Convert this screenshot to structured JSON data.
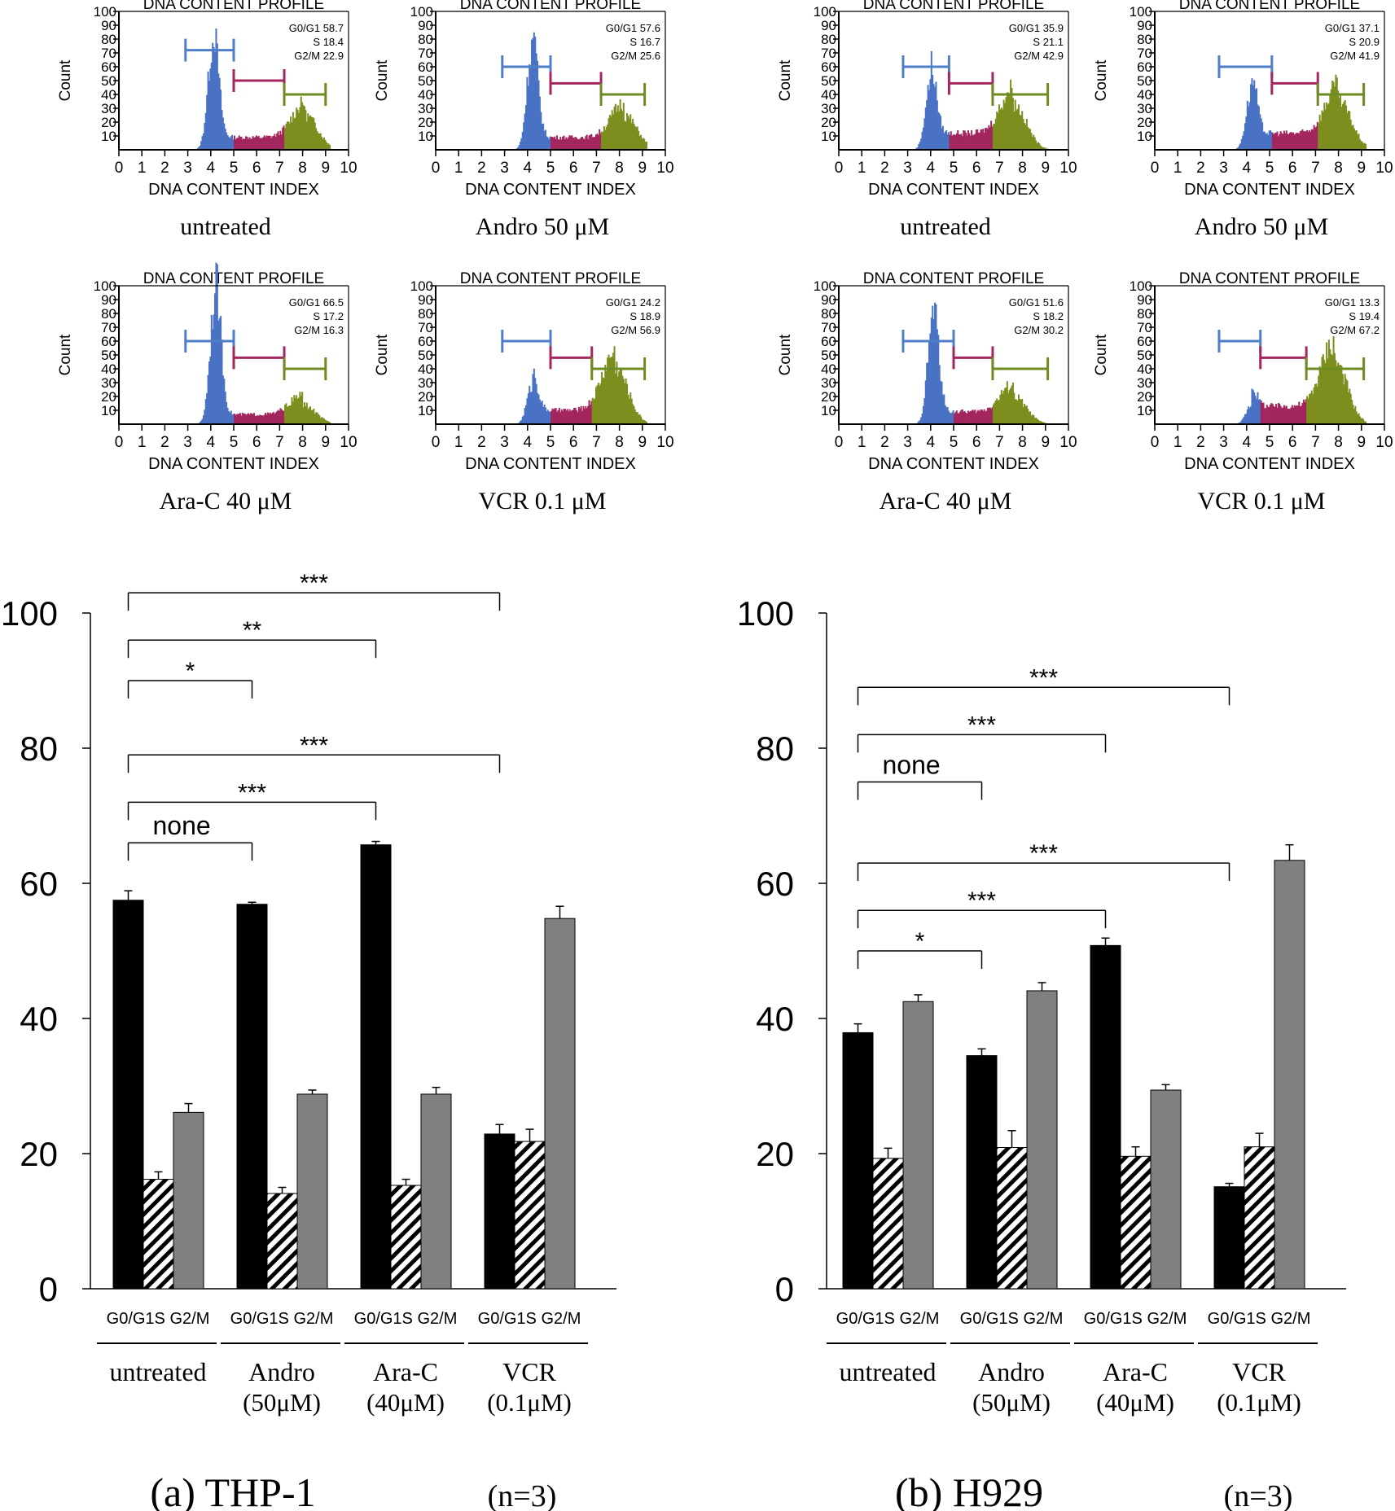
{
  "histogram_common": {
    "title": "DNA CONTENT PROFILE",
    "xlabel": "DNA CONTENT INDEX",
    "ylabel": "Count",
    "x_ticks": [
      "0",
      "1",
      "2",
      "3",
      "4",
      "5",
      "6",
      "7",
      "8",
      "9",
      "10"
    ],
    "y_ticks": [
      "10",
      "20",
      "30",
      "40",
      "50",
      "60",
      "70",
      "80",
      "90",
      "100"
    ],
    "phase_labels": [
      "G0/G1",
      "S",
      "G2/M"
    ]
  },
  "bar_common": {
    "y_ticks": [
      "0",
      "20",
      "40",
      "60",
      "80",
      "100"
    ],
    "phase_labels": [
      "G0/G1",
      "S",
      "G2/M"
    ]
  },
  "chart_data": [
    {
      "type": "histogram",
      "panel": "THP-1",
      "condition": "untreated",
      "xlim": [
        0,
        10
      ],
      "ylim": [
        0,
        100
      ],
      "peaks": {
        "g1_center": 4.1,
        "g1_height": 78,
        "g2_center": 8.1,
        "g2_height": 25,
        "s_level": 9
      },
      "gates": {
        "g1": [
          2.9,
          5.0,
          72
        ],
        "s": [
          5.0,
          7.2,
          50
        ],
        "g2": [
          7.2,
          9.0,
          40
        ]
      },
      "stats": {
        "G0/G1": "58.7",
        "S": "18.4",
        "G2/M": "22.9"
      }
    },
    {
      "type": "histogram",
      "panel": "THP-1",
      "condition": "Andro 50 μM",
      "xlim": [
        0,
        10
      ],
      "ylim": [
        0,
        100
      ],
      "peaks": {
        "g1_center": 4.2,
        "g1_height": 75,
        "g2_center": 8.2,
        "g2_height": 25,
        "s_level": 9
      },
      "gates": {
        "g1": [
          2.9,
          5.0,
          60
        ],
        "s": [
          5.0,
          7.2,
          48
        ],
        "g2": [
          7.2,
          9.1,
          40
        ]
      },
      "stats": {
        "G0/G1": "57.6",
        "S": "16.7",
        "G2/M": "25.6"
      }
    },
    {
      "type": "histogram",
      "panel": "H929",
      "condition": "untreated",
      "xlim": [
        0,
        10
      ],
      "ylim": [
        0,
        100
      ],
      "peaks": {
        "g1_center": 4.0,
        "g1_height": 50,
        "g2_center": 7.6,
        "g2_height": 33,
        "s_level": 12
      },
      "gates": {
        "g1": [
          2.8,
          4.8,
          60
        ],
        "s": [
          4.8,
          6.7,
          48
        ],
        "g2": [
          6.7,
          9.1,
          40
        ]
      },
      "stats": {
        "G0/G1": "35.9",
        "S": "21.1",
        "G2/M": "42.9"
      }
    },
    {
      "type": "histogram",
      "panel": "H929",
      "condition": "Andro 50 μM",
      "xlim": [
        0,
        10
      ],
      "ylim": [
        0,
        100
      ],
      "peaks": {
        "g1_center": 4.2,
        "g1_height": 42,
        "g2_center": 8.0,
        "g2_height": 35,
        "s_level": 12
      },
      "gates": {
        "g1": [
          2.8,
          5.1,
          60
        ],
        "s": [
          5.1,
          7.1,
          48
        ],
        "g2": [
          7.1,
          9.1,
          40
        ]
      },
      "stats": {
        "G0/G1": "37.1",
        "S": "20.9",
        "G2/M": "41.9"
      }
    },
    {
      "type": "histogram",
      "panel": "THP-1",
      "condition": "Ara-C 40 μM",
      "xlim": [
        0,
        10
      ],
      "ylim": [
        0,
        100
      ],
      "peaks": {
        "g1_center": 4.2,
        "g1_height": 96,
        "g2_center": 8.0,
        "g2_height": 14,
        "s_level": 7
      },
      "gates": {
        "g1": [
          2.9,
          5.0,
          60
        ],
        "s": [
          5.0,
          7.2,
          48
        ],
        "g2": [
          7.2,
          9.0,
          40
        ]
      },
      "stats": {
        "G0/G1": "66.5",
        "S": "17.2",
        "G2/M": "16.3"
      }
    },
    {
      "type": "histogram",
      "panel": "THP-1",
      "condition": "VCR 0.1 μM",
      "xlim": [
        0,
        10
      ],
      "ylim": [
        0,
        100
      ],
      "peaks": {
        "g1_center": 4.2,
        "g1_height": 28,
        "g2_center": 7.8,
        "g2_height": 42,
        "s_level": 10
      },
      "gates": {
        "g1": [
          2.9,
          5.0,
          60
        ],
        "s": [
          5.0,
          6.8,
          48
        ],
        "g2": [
          6.8,
          9.1,
          40
        ]
      },
      "stats": {
        "G0/G1": "24.2",
        "S": "18.9",
        "G2/M": "56.9"
      }
    },
    {
      "type": "histogram",
      "panel": "H929",
      "condition": "Ara-C 40 μM",
      "xlim": [
        0,
        10
      ],
      "ylim": [
        0,
        100
      ],
      "peaks": {
        "g1_center": 4.1,
        "g1_height": 78,
        "g2_center": 7.6,
        "g2_height": 20,
        "s_level": 9
      },
      "gates": {
        "g1": [
          2.8,
          5.0,
          60
        ],
        "s": [
          5.0,
          6.7,
          48
        ],
        "g2": [
          6.7,
          9.1,
          40
        ]
      },
      "stats": {
        "G0/G1": "51.6",
        "S": "18.2",
        "G2/M": "30.2"
      }
    },
    {
      "type": "histogram",
      "panel": "H929",
      "condition": "VCR 0.1 μM",
      "xlim": [
        0,
        10
      ],
      "ylim": [
        0,
        100
      ],
      "peaks": {
        "g1_center": 4.2,
        "g1_height": 14,
        "g2_center": 7.8,
        "g2_height": 47,
        "s_level": 13
      },
      "gates": {
        "g1": [
          2.8,
          4.6,
          60
        ],
        "s": [
          4.6,
          6.6,
          48
        ],
        "g2": [
          6.6,
          9.1,
          40
        ]
      },
      "stats": {
        "G0/G1": "13.3",
        "S": "19.4",
        "G2/M": "67.2"
      }
    },
    {
      "type": "bar",
      "panel_label": "(a) THP-1",
      "n_label": "(n=3)",
      "ylim": [
        0,
        100
      ],
      "groups": [
        {
          "phase_line": "G0/G1S G2/M",
          "label": "untreated",
          "sublabel": ""
        },
        {
          "phase_line": "G0/G1S G2/M",
          "label": "Andro",
          "sublabel": "(50μM)"
        },
        {
          "phase_line": "G0/G1S G2/M",
          "label": "Ara-C",
          "sublabel": "(40μM)"
        },
        {
          "phase_line": "G0/G1S G2/M",
          "label": "VCR",
          "sublabel": "(0.1μM)"
        }
      ],
      "series": [
        {
          "phase": "G0/G1",
          "values": [
            57.5,
            56.9,
            65.7,
            22.9
          ],
          "errors": [
            1.4,
            0.3,
            0.5,
            1.4
          ],
          "color": "#000000"
        },
        {
          "phase": "S",
          "values": [
            16.2,
            14.1,
            15.3,
            21.8
          ],
          "errors": [
            1.1,
            0.9,
            0.9,
            1.8
          ],
          "color": "hatch"
        },
        {
          "phase": "G2/M",
          "values": [
            26.1,
            28.8,
            28.8,
            54.8
          ],
          "errors": [
            1.3,
            0.6,
            1.0,
            1.8
          ],
          "color": "#808080"
        }
      ],
      "significance": [
        {
          "from_group": 0,
          "to_group": 3,
          "text": "***",
          "y": 103
        },
        {
          "from_group": 0,
          "to_group": 2,
          "text": "**",
          "y": 96
        },
        {
          "from_group": 0,
          "to_group": 1,
          "text": "*",
          "y": 90
        },
        {
          "from_group": 0,
          "to_group": 3,
          "text": "***",
          "y": 79
        },
        {
          "from_group": 0,
          "to_group": 2,
          "text": "***",
          "y": 72
        },
        {
          "from_group": 0,
          "to_group": 1,
          "text": "none",
          "y": 66
        }
      ]
    },
    {
      "type": "bar",
      "panel_label": "(b) H929",
      "n_label": "(n=3)",
      "ylim": [
        0,
        100
      ],
      "groups": [
        {
          "phase_line": "G0/G1S G2/M",
          "label": "untreated",
          "sublabel": ""
        },
        {
          "phase_line": "G0/G1S G2/M",
          "label": "Andro",
          "sublabel": "(50μM)"
        },
        {
          "phase_line": "G0/G1S G2/M",
          "label": "Ara-C",
          "sublabel": "(40μM)"
        },
        {
          "phase_line": "G0/G1S G2/M",
          "label": "VCR",
          "sublabel": "(0.1μM)"
        }
      ],
      "series": [
        {
          "phase": "G0/G1",
          "values": [
            37.9,
            34.5,
            50.8,
            15.1
          ],
          "errors": [
            1.3,
            1.0,
            1.1,
            0.5
          ],
          "color": "#000000"
        },
        {
          "phase": "S",
          "values": [
            19.3,
            20.9,
            19.6,
            21.0
          ],
          "errors": [
            1.5,
            2.5,
            1.4,
            2.0
          ],
          "color": "hatch"
        },
        {
          "phase": "G2/M",
          "values": [
            42.5,
            44.1,
            29.4,
            63.4
          ],
          "errors": [
            1.0,
            1.2,
            0.8,
            2.3
          ],
          "color": "#808080"
        }
      ],
      "significance": [
        {
          "from_group": 0,
          "to_group": 3,
          "text": "***",
          "y": 89
        },
        {
          "from_group": 0,
          "to_group": 2,
          "text": "***",
          "y": 82
        },
        {
          "from_group": 0,
          "to_group": 1,
          "text": "none",
          "y": 75
        },
        {
          "from_group": 0,
          "to_group": 3,
          "text": "***",
          "y": 63
        },
        {
          "from_group": 0,
          "to_group": 2,
          "text": "***",
          "y": 56
        },
        {
          "from_group": 0,
          "to_group": 1,
          "text": "*",
          "y": 50
        }
      ]
    }
  ]
}
